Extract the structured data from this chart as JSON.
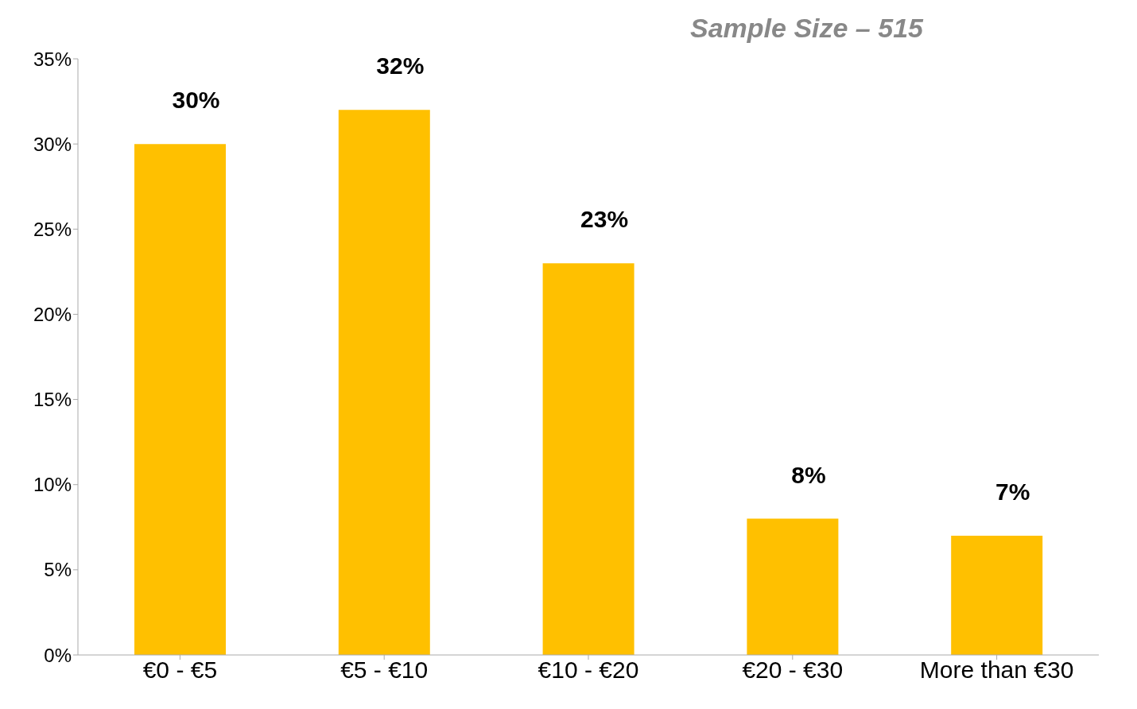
{
  "chart_data": {
    "type": "bar",
    "title": "Sample Size – 515",
    "categories": [
      "€0 - €5",
      "€5 - €10",
      "€10 - €20",
      "€20 - €30",
      "More than €30"
    ],
    "values": [
      30,
      32,
      23,
      8,
      7
    ],
    "value_labels": [
      "30%",
      "32%",
      "23%",
      "8%",
      "7%"
    ],
    "color": "#ffc000",
    "ylim": [
      0,
      35
    ],
    "yticks": [
      {
        "value": 0,
        "label": "0%"
      },
      {
        "value": 5,
        "label": "5%"
      },
      {
        "value": 10,
        "label": "10%"
      },
      {
        "value": 15,
        "label": "15%"
      },
      {
        "value": 20,
        "label": "20%"
      },
      {
        "value": 25,
        "label": "25%"
      },
      {
        "value": 30,
        "label": "30%"
      },
      {
        "value": 35,
        "label": "35%"
      }
    ]
  }
}
